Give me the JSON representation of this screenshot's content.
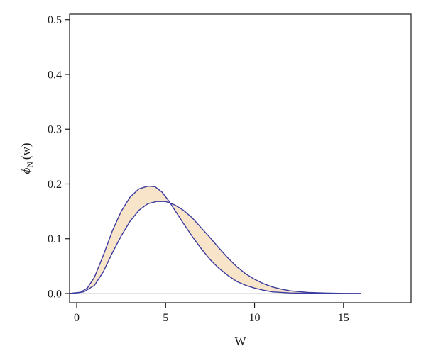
{
  "chart_data": {
    "type": "area",
    "xlabel": "W",
    "ylabel_symbol": "ϕ",
    "ylabel_subscript": "N",
    "ylabel_arg": "(w)",
    "xlim": [
      -0.4,
      18.8
    ],
    "ylim": [
      0,
      0.51
    ],
    "xticks": [
      0,
      5,
      10,
      15
    ],
    "yticks": [
      0.0,
      0.1,
      0.2,
      0.3,
      0.4,
      0.5
    ],
    "ytick_labels": [
      "0.0",
      "0.1",
      "0.2",
      "0.3",
      "0.4",
      "0.5"
    ],
    "grid": false,
    "legend": "none",
    "baseline": 0,
    "colors": {
      "line": "#3a3aa0",
      "fill": "#f8e4c8",
      "baseline": "#c8c8c8",
      "frame": "#1a1a1a"
    },
    "series": [
      {
        "x": [
          -0.4,
          0.2,
          0.6,
          1.0,
          1.5,
          2.0,
          2.5,
          3.0,
          3.5,
          4.0,
          4.4,
          4.8,
          5.2,
          5.6,
          6.0,
          6.5,
          7.0,
          7.5,
          8.0,
          8.5,
          9.0,
          9.5,
          10.0,
          10.5,
          11.0,
          11.5,
          12.0,
          13.0,
          14.0,
          15.0,
          16.0
        ],
        "values": [
          0,
          0.002,
          0.01,
          0.03,
          0.07,
          0.114,
          0.15,
          0.176,
          0.191,
          0.196,
          0.195,
          0.185,
          0.168,
          0.148,
          0.128,
          0.104,
          0.082,
          0.062,
          0.046,
          0.033,
          0.022,
          0.015,
          0.01,
          0.006,
          0.003,
          0.002,
          0.001,
          0.0005,
          0.0002,
          0.0001,
          0
        ]
      },
      {
        "x": [
          -0.4,
          0.4,
          1.0,
          1.5,
          2.0,
          2.5,
          3.0,
          3.5,
          4.0,
          4.5,
          5.0,
          5.5,
          6.0,
          6.5,
          7.0,
          7.5,
          8.0,
          8.5,
          9.0,
          9.5,
          10.0,
          10.5,
          11.0,
          11.5,
          12.0,
          13.0,
          14.0,
          15.0,
          16.0
        ],
        "values": [
          0,
          0.003,
          0.015,
          0.04,
          0.074,
          0.105,
          0.132,
          0.152,
          0.164,
          0.168,
          0.168,
          0.162,
          0.152,
          0.138,
          0.12,
          0.102,
          0.083,
          0.065,
          0.049,
          0.036,
          0.026,
          0.018,
          0.012,
          0.008,
          0.005,
          0.002,
          0.0008,
          0.0003,
          0
        ]
      }
    ]
  }
}
